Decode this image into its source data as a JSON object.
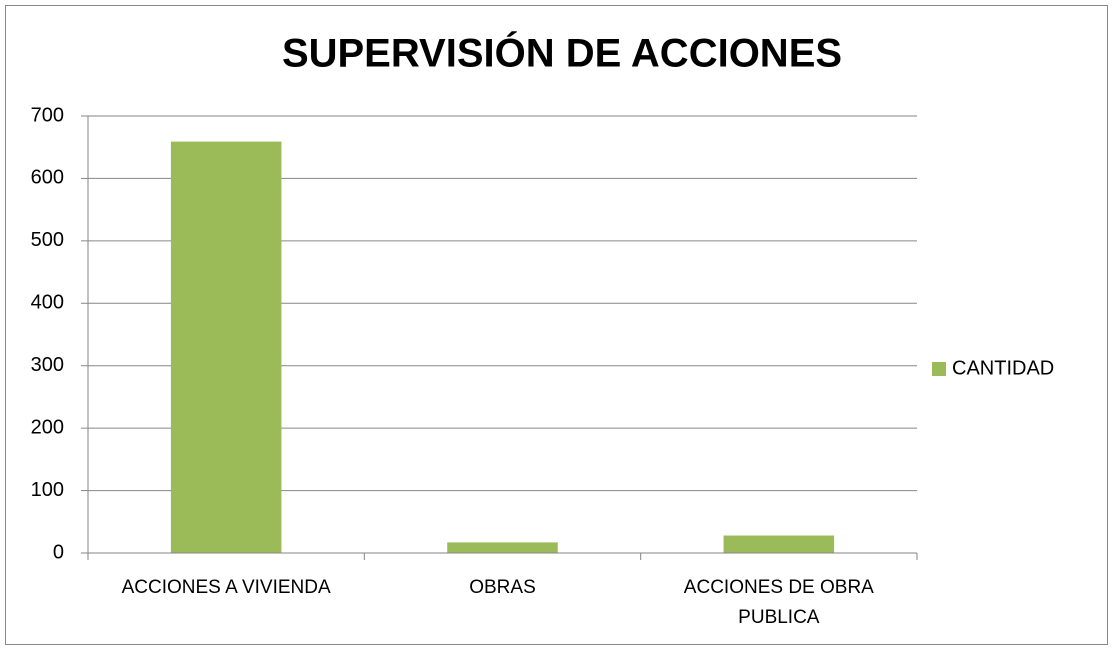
{
  "chart_data": {
    "type": "bar",
    "title": "SUPERVISIÓN DE ACCIONES",
    "categories": [
      "ACCIONES A VIVIENDA",
      "OBRAS",
      "ACCIONES DE OBRA PUBLICA"
    ],
    "series": [
      {
        "name": "CANTIDAD",
        "color": "#9bbb59",
        "values": [
          659,
          17,
          28
        ]
      }
    ],
    "ylim": [
      0,
      700
    ],
    "yticks": [
      0,
      100,
      200,
      300,
      400,
      500,
      600,
      700
    ],
    "grid": true,
    "legend": "right"
  }
}
